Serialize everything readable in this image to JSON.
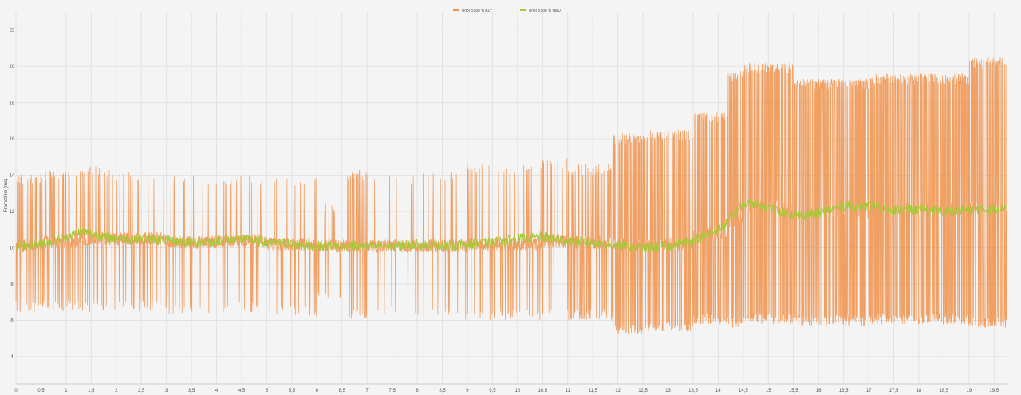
{
  "chart_data": {
    "type": "line",
    "title": "",
    "xlabel": "",
    "ylabel": "Frametime (ms)",
    "xlim": [
      0,
      19.75
    ],
    "ylim": [
      2.5,
      23
    ],
    "x_ticks": [
      "0",
      "0,5",
      "1",
      "1,5",
      "2",
      "2,5",
      "3",
      "3,5",
      "4",
      "4,5",
      "5",
      "5,5",
      "6",
      "6,5",
      "7",
      "7,5",
      "8",
      "8,5",
      "9",
      "9,5",
      "10",
      "10,5",
      "11",
      "11,5",
      "12",
      "12,5",
      "13",
      "13,5",
      "14",
      "14,5",
      "15",
      "15,5",
      "16",
      "16,5",
      "17",
      "17,5",
      "18",
      "18,5",
      "19",
      "19,5"
    ],
    "y_ticks": [
      "4",
      "6",
      "8",
      "10",
      "12",
      "14",
      "16",
      "18",
      "20",
      "22"
    ],
    "grid": true,
    "legend": "top-center",
    "series": [
      {
        "name": "GTX 1080 Ti ALT",
        "color": "#f0904a",
        "segments": [
          {
            "x_start": 0.0,
            "x_end": 0.5,
            "baseline": 10.1,
            "low": 6.4,
            "high": 14.1,
            "density": 0.35
          },
          {
            "x_start": 0.5,
            "x_end": 1.3,
            "baseline": 10.3,
            "low": 6.5,
            "high": 14.3,
            "density": 0.3
          },
          {
            "x_start": 1.3,
            "x_end": 2.0,
            "baseline": 10.5,
            "low": 6.4,
            "high": 14.5,
            "density": 0.22
          },
          {
            "x_start": 2.0,
            "x_end": 3.0,
            "baseline": 10.5,
            "low": 6.5,
            "high": 14.2,
            "density": 0.12
          },
          {
            "x_start": 3.0,
            "x_end": 4.0,
            "baseline": 10.3,
            "low": 6.2,
            "high": 14.0,
            "density": 0.1
          },
          {
            "x_start": 4.0,
            "x_end": 5.0,
            "baseline": 10.4,
            "low": 6.4,
            "high": 14.0,
            "density": 0.12
          },
          {
            "x_start": 5.0,
            "x_end": 6.0,
            "baseline": 10.2,
            "low": 6.2,
            "high": 14.0,
            "density": 0.12
          },
          {
            "x_start": 6.0,
            "x_end": 6.6,
            "baseline": 10.1,
            "low": 7.2,
            "high": 12.5,
            "density": 0.12
          },
          {
            "x_start": 6.6,
            "x_end": 7.0,
            "baseline": 10.0,
            "low": 6.0,
            "high": 14.3,
            "density": 0.45
          },
          {
            "x_start": 7.0,
            "x_end": 8.0,
            "baseline": 10.1,
            "low": 6.2,
            "high": 14.0,
            "density": 0.06
          },
          {
            "x_start": 8.0,
            "x_end": 9.0,
            "baseline": 10.1,
            "low": 6.0,
            "high": 14.2,
            "density": 0.12
          },
          {
            "x_start": 9.0,
            "x_end": 10.5,
            "baseline": 10.2,
            "low": 6.0,
            "high": 14.6,
            "density": 0.18
          },
          {
            "x_start": 10.5,
            "x_end": 11.0,
            "baseline": 10.4,
            "low": 6.0,
            "high": 15.0,
            "density": 0.15
          },
          {
            "x_start": 11.0,
            "x_end": 11.9,
            "baseline": 10.3,
            "low": 6.0,
            "high": 14.6,
            "density": 0.4
          },
          {
            "x_start": 11.9,
            "x_end": 12.5,
            "baseline": 10.2,
            "low": 5.2,
            "high": 16.3,
            "density": 0.65
          },
          {
            "x_start": 12.5,
            "x_end": 13.5,
            "baseline": 10.2,
            "low": 5.4,
            "high": 16.5,
            "density": 0.6
          },
          {
            "x_start": 13.5,
            "x_end": 14.2,
            "baseline": 10.8,
            "low": 5.8,
            "high": 17.5,
            "density": 0.55
          },
          {
            "x_start": 14.2,
            "x_end": 14.5,
            "baseline": 11.5,
            "low": 5.6,
            "high": 19.8,
            "density": 0.7
          },
          {
            "x_start": 14.5,
            "x_end": 15.5,
            "baseline": 12.3,
            "low": 5.8,
            "high": 20.2,
            "density": 0.85
          },
          {
            "x_start": 15.5,
            "x_end": 17.0,
            "baseline": 12.0,
            "low": 5.7,
            "high": 19.3,
            "density": 0.85
          },
          {
            "x_start": 17.0,
            "x_end": 19.0,
            "baseline": 12.2,
            "low": 5.8,
            "high": 19.6,
            "density": 0.85
          },
          {
            "x_start": 19.0,
            "x_end": 19.75,
            "baseline": 12.2,
            "low": 5.6,
            "high": 20.5,
            "density": 0.85
          }
        ]
      },
      {
        "name": "GTX 1080 Ti NEU",
        "color": "#a8c83a",
        "points": [
          [
            0.0,
            10.1
          ],
          [
            0.5,
            10.2
          ],
          [
            1.0,
            10.6
          ],
          [
            1.3,
            10.9
          ],
          [
            1.6,
            10.7
          ],
          [
            2.0,
            10.5
          ],
          [
            2.5,
            10.5
          ],
          [
            3.0,
            10.4
          ],
          [
            3.5,
            10.3
          ],
          [
            4.0,
            10.4
          ],
          [
            4.5,
            10.5
          ],
          [
            5.0,
            10.3
          ],
          [
            5.5,
            10.2
          ],
          [
            6.0,
            10.1
          ],
          [
            6.5,
            10.1
          ],
          [
            7.0,
            10.1
          ],
          [
            7.5,
            10.1
          ],
          [
            8.0,
            10.2
          ],
          [
            8.5,
            10.1
          ],
          [
            9.0,
            10.2
          ],
          [
            9.5,
            10.3
          ],
          [
            10.0,
            10.5
          ],
          [
            10.5,
            10.6
          ],
          [
            11.0,
            10.4
          ],
          [
            11.5,
            10.3
          ],
          [
            12.0,
            10.1
          ],
          [
            12.5,
            10.0
          ],
          [
            13.0,
            10.1
          ],
          [
            13.5,
            10.4
          ],
          [
            14.0,
            11.0
          ],
          [
            14.2,
            11.4
          ],
          [
            14.4,
            12.2
          ],
          [
            14.6,
            12.4
          ],
          [
            15.0,
            12.2
          ],
          [
            15.5,
            11.8
          ],
          [
            16.0,
            11.9
          ],
          [
            16.5,
            12.3
          ],
          [
            17.0,
            12.3
          ],
          [
            17.5,
            12.1
          ],
          [
            18.0,
            12.1
          ],
          [
            18.5,
            12.0
          ],
          [
            19.0,
            12.1
          ],
          [
            19.5,
            12.1
          ],
          [
            19.75,
            12.3
          ]
        ]
      }
    ]
  }
}
